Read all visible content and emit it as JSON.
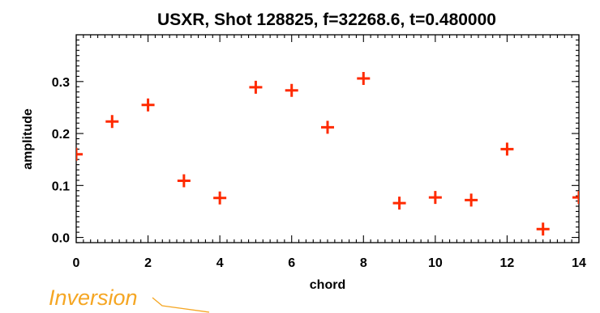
{
  "chart_data": {
    "type": "scatter",
    "title": "USXR, Shot 128825, f=32268.6, t=0.480000",
    "xlabel": "chord",
    "ylabel": "amplitude",
    "xlim": [
      0,
      14
    ],
    "ylim": [
      -0.01,
      0.39
    ],
    "x_ticks": [
      0,
      2,
      4,
      6,
      8,
      10,
      12,
      14
    ],
    "x_tick_labels": [
      "0",
      "2",
      "4",
      "6",
      "8",
      "10",
      "12",
      "14"
    ],
    "y_ticks": [
      0.0,
      0.1,
      0.2,
      0.3
    ],
    "y_tick_labels": [
      "0.0",
      "0.1",
      "0.2",
      "0.3"
    ],
    "grid": false,
    "marker": "plus",
    "marker_color": "#ff2a00",
    "x": [
      0,
      1,
      2,
      3,
      4,
      5,
      6,
      7,
      8,
      9,
      10,
      11,
      12,
      13,
      14
    ],
    "y": [
      0.16,
      0.223,
      0.255,
      0.109,
      0.076,
      0.289,
      0.283,
      0.212,
      0.306,
      0.066,
      0.077,
      0.072,
      0.17,
      0.016,
      0.077
    ]
  },
  "annotation": {
    "text": "Inversion",
    "color": "#f5a623"
  }
}
